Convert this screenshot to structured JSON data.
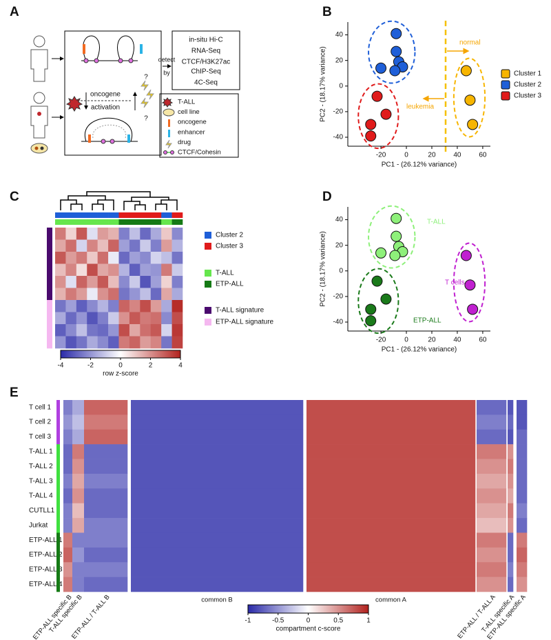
{
  "panel_labels": [
    "A",
    "B",
    "C",
    "D",
    "E"
  ],
  "panel_a": {
    "oncogene": "oncogene",
    "activation": "activation",
    "question": "?",
    "detect": "detect",
    "by": "by",
    "methods": [
      "in-situ Hi-C",
      "RNA-Seq",
      "CTCF/H3K27ac",
      "ChIP-Seq",
      "4C-Seq"
    ],
    "legend": [
      "T-ALL",
      "cell line",
      "oncogene",
      "enhancer",
      "drug",
      "CTCF/Cohesin"
    ]
  },
  "chart_data": [
    {
      "type": "scatter",
      "x_label": "PC1 - (26.12% variance)",
      "y_label": "PC2 - (18.17% variance)",
      "xlim": [
        -46,
        66
      ],
      "ylim": [
        -47,
        50
      ],
      "xticks": [
        -20,
        0,
        20,
        40,
        60
      ],
      "yticks": [
        -40,
        -20,
        0,
        20,
        40
      ],
      "legend": true,
      "series": [
        {
          "name": "Cluster 1",
          "color": "#f7b500",
          "x": [
            47,
            50,
            52
          ],
          "y": [
            12,
            -11,
            -30
          ]
        },
        {
          "name": "Cluster 2",
          "color": "#1f5fd8",
          "x": [
            -8,
            -8,
            -6,
            -3,
            -20,
            -9
          ],
          "y": [
            41,
            27,
            19,
            15,
            14,
            12
          ]
        },
        {
          "name": "Cluster 3",
          "color": "#e01b1b",
          "x": [
            -23,
            -16,
            -28,
            -28
          ],
          "y": [
            -8,
            -22,
            -30,
            -39
          ]
        }
      ],
      "annotations": [
        {
          "text": "normal",
          "color": "#f5a500"
        },
        {
          "text": "leukemia",
          "color": "#f5a500"
        }
      ]
    },
    {
      "type": "scatter",
      "x_label": "PC1 - (26.12% variance)",
      "y_label": "PC2 - (18.17% variance)",
      "xlim": [
        -46,
        66
      ],
      "ylim": [
        -47,
        50
      ],
      "xticks": [
        -20,
        0,
        20,
        40,
        60
      ],
      "yticks": [
        -40,
        -20,
        0,
        20,
        40
      ],
      "legend": false,
      "series": [
        {
          "name": "T-ALL",
          "color": "#8ef07a",
          "x": [
            -8,
            -8,
            -6,
            -3,
            -20,
            -9
          ],
          "y": [
            41,
            27,
            19,
            15,
            14,
            12
          ]
        },
        {
          "name": "ETP-ALL",
          "color": "#1a7a1a",
          "x": [
            -23,
            -16,
            -28,
            -28
          ],
          "y": [
            -8,
            -22,
            -30,
            -39
          ]
        },
        {
          "name": "T cells",
          "color": "#c020d0",
          "x": [
            47,
            50,
            52
          ],
          "y": [
            12,
            -11,
            -30
          ]
        }
      ]
    },
    {
      "type": "heatmap",
      "values": [
        [
          2.4,
          0.8,
          3.0,
          -0.6,
          1.8,
          1.4,
          -2.4,
          -1.2,
          -2.8,
          -1.6,
          1.0,
          -2.2
        ],
        [
          1.6,
          2.6,
          -0.8,
          2.2,
          1.2,
          2.8,
          -1.8,
          -2.6,
          -1.0,
          -2.4,
          1.8,
          -1.4
        ],
        [
          3.0,
          1.8,
          2.4,
          1.0,
          2.6,
          -0.4,
          -2.8,
          -1.8,
          -2.2,
          -0.8,
          -1.2,
          -2.6
        ],
        [
          1.2,
          2.2,
          0.6,
          3.2,
          1.6,
          2.0,
          -1.4,
          -3.0,
          -1.8,
          -2.0,
          2.4,
          -1.0
        ],
        [
          2.0,
          -0.6,
          2.8,
          1.8,
          3.0,
          1.2,
          -2.2,
          -1.0,
          -3.2,
          -1.8,
          0.8,
          -2.4
        ],
        [
          1.4,
          2.4,
          1.8,
          -0.4,
          2.0,
          2.6,
          -2.6,
          -2.0,
          -1.2,
          -2.8,
          1.6,
          -1.6
        ],
        [
          -2.6,
          -1.8,
          -3.0,
          -2.2,
          -1.4,
          -2.4,
          2.8,
          2.2,
          3.2,
          1.8,
          -1.6,
          3.8
        ],
        [
          -1.6,
          -2.8,
          -2.0,
          -3.2,
          -2.4,
          -1.0,
          2.0,
          3.0,
          2.4,
          2.6,
          -2.2,
          3.2
        ],
        [
          -3.0,
          -2.2,
          -1.2,
          -2.6,
          -2.8,
          -2.0,
          3.2,
          1.6,
          2.6,
          3.0,
          -0.8,
          3.6
        ],
        [
          -2.0,
          -3.2,
          -2.6,
          -1.6,
          -2.2,
          -3.0,
          2.4,
          2.8,
          1.8,
          2.2,
          -2.6,
          3.4
        ]
      ],
      "colorbar": {
        "lim": [
          -4,
          4
        ],
        "ticks": [
          -4,
          -2,
          0,
          2,
          4
        ],
        "label": "row z-score"
      },
      "legend": [
        {
          "name": "Cluster 2",
          "color": "#1f5fd8"
        },
        {
          "name": "Cluster 3",
          "color": "#e01b1b"
        },
        {
          "name": "T-ALL",
          "color": "#66e64d"
        },
        {
          "name": "ETP-ALL",
          "color": "#157a15"
        },
        {
          "name": "T-ALL signature",
          "color": "#4a0a6e"
        },
        {
          "name": "ETP-ALL signature",
          "color": "#f5b8f0"
        }
      ],
      "column_bars": [
        [
          0,
          0,
          0,
          0,
          0,
          0,
          1,
          1,
          1,
          1,
          0,
          1
        ],
        [
          2,
          2,
          2,
          2,
          2,
          2,
          3,
          3,
          3,
          3,
          2,
          3
        ]
      ],
      "row_bar": [
        4,
        4,
        4,
        4,
        4,
        4,
        5,
        5,
        5,
        5
      ]
    },
    {
      "type": "heatmap",
      "row_labels": [
        "T cell 1",
        "T cell 2",
        "T cell 3",
        "T-ALL 1",
        "T-ALL 2",
        "T-ALL 3",
        "T-ALL 4",
        "CUTLL1",
        "Jurkat",
        "ETP-ALL 1",
        "ETP-ALL 2",
        "ETP-ALL 3",
        "ETP-ALL 4"
      ],
      "row_colors": [
        "#b040e0",
        "#b040e0",
        "#b040e0",
        "#40e040",
        "#40e040",
        "#40e040",
        "#40e040",
        "#40e040",
        "#40e040",
        "#157a15",
        "#157a15",
        "#157a15",
        "#157a15"
      ],
      "column_labels": [
        "ETP-ALL specific B",
        "T-ALL specific B",
        "ETP-ALL / T-ALL B",
        "common B",
        "common A",
        "ETP-ALL / T-ALL A",
        "T-ALL specific A",
        "ETP-ALL specific A"
      ],
      "values": [
        [
          -0.6,
          -0.4,
          0.7,
          -0.8,
          0.8,
          -0.7,
          -0.8,
          -0.8
        ],
        [
          -0.5,
          -0.3,
          0.6,
          -0.8,
          0.8,
          -0.6,
          -0.7,
          -0.8
        ],
        [
          -0.6,
          -0.4,
          0.7,
          -0.8,
          0.8,
          -0.7,
          -0.8,
          -0.7
        ],
        [
          -0.7,
          0.6,
          -0.7,
          -0.8,
          0.8,
          0.6,
          0.5,
          -0.7
        ],
        [
          -0.7,
          0.5,
          -0.7,
          -0.8,
          0.8,
          0.5,
          0.6,
          -0.7
        ],
        [
          -0.6,
          0.4,
          -0.6,
          -0.8,
          0.8,
          0.4,
          0.5,
          -0.7
        ],
        [
          -0.7,
          0.5,
          -0.7,
          -0.8,
          0.8,
          0.5,
          0.4,
          -0.7
        ],
        [
          -0.6,
          0.3,
          -0.7,
          -0.8,
          0.8,
          0.4,
          0.6,
          -0.6
        ],
        [
          -0.6,
          0.4,
          -0.6,
          -0.8,
          0.8,
          0.3,
          0.5,
          -0.7
        ],
        [
          0.6,
          -0.6,
          -0.6,
          -0.8,
          0.8,
          0.6,
          -0.7,
          0.6
        ],
        [
          0.7,
          -0.5,
          -0.7,
          -0.8,
          0.8,
          0.5,
          -0.7,
          0.7
        ],
        [
          0.5,
          -0.6,
          -0.6,
          -0.8,
          0.8,
          0.6,
          -0.6,
          0.6
        ],
        [
          0.6,
          -0.6,
          -0.7,
          -0.8,
          0.8,
          0.5,
          -0.7,
          0.5
        ]
      ],
      "colorbar": {
        "lim": [
          -1,
          1
        ],
        "ticks": [
          -1,
          -0.5,
          0,
          0.5,
          1
        ],
        "label": "compartment c-score"
      }
    }
  ]
}
